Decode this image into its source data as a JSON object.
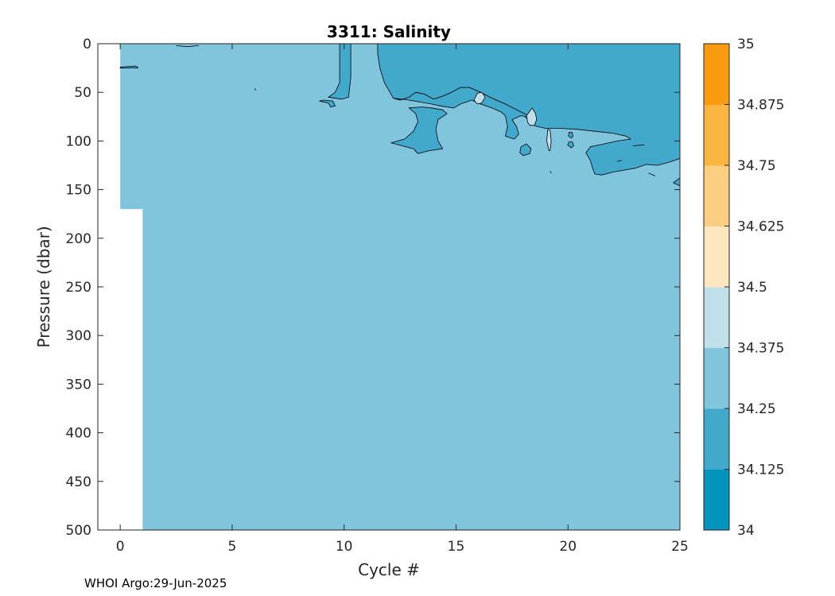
{
  "chart_data": {
    "type": "heatmap",
    "subtype": "filled-contour",
    "title": "3311:  Salinity",
    "xlabel": "Cycle #",
    "ylabel": "Pressure (dbar)",
    "xlim": [
      -1,
      25
    ],
    "ylim": [
      500,
      0
    ],
    "y_reversed": true,
    "xticks": [
      0,
      5,
      10,
      15,
      20,
      25
    ],
    "yticks": [
      0,
      50,
      100,
      150,
      200,
      250,
      300,
      350,
      400,
      450,
      500
    ],
    "grid": false,
    "data_coverage": {
      "cycles": [
        0,
        25
      ],
      "cycle0_max_pressure": 170
    },
    "background_level_range": [
      34.25,
      34.375
    ],
    "regions": [
      {
        "level_range": [
          34.125,
          34.25
        ],
        "polygon": [
          [
            11.5,
            0
          ],
          [
            25,
            0
          ],
          [
            25,
            118
          ],
          [
            24.5,
            122
          ],
          [
            24,
            125
          ],
          [
            23.5,
            124
          ],
          [
            23,
            128
          ],
          [
            22.5,
            130
          ],
          [
            22,
            132
          ],
          [
            21.5,
            135
          ],
          [
            21.2,
            134
          ],
          [
            21.1,
            128
          ],
          [
            21,
            120
          ],
          [
            20.8,
            112
          ],
          [
            21,
            106
          ],
          [
            21.6,
            103
          ],
          [
            22.2,
            100
          ],
          [
            22.8,
            98
          ],
          [
            22.6,
            95
          ],
          [
            22,
            92
          ],
          [
            21.2,
            90
          ],
          [
            20.4,
            88
          ],
          [
            19.6,
            87
          ],
          [
            19,
            87
          ],
          [
            18.6,
            85
          ],
          [
            18.3,
            82
          ],
          [
            18.1,
            75
          ],
          [
            17.7,
            70
          ],
          [
            17.2,
            62
          ],
          [
            16.6,
            56
          ],
          [
            16.1,
            50
          ],
          [
            15.6,
            45
          ],
          [
            15.2,
            45
          ],
          [
            14.8,
            50
          ],
          [
            14.4,
            54
          ],
          [
            14,
            57
          ],
          [
            13.6,
            52
          ],
          [
            13.2,
            50
          ],
          [
            12.9,
            55
          ],
          [
            12.5,
            58
          ],
          [
            12.2,
            56
          ],
          [
            12,
            48
          ],
          [
            11.8,
            40
          ],
          [
            11.6,
            25
          ],
          [
            11.5,
            10
          ]
        ]
      },
      {
        "level_range": [
          34.125,
          34.25
        ],
        "polygon": [
          [
            12.2,
            56
          ],
          [
            12.9,
            58
          ],
          [
            13.4,
            60
          ],
          [
            13.9,
            62
          ],
          [
            14.3,
            64
          ],
          [
            14.9,
            66
          ],
          [
            15.2,
            62
          ],
          [
            15.7,
            58
          ],
          [
            16.1,
            62
          ],
          [
            16.6,
            66
          ],
          [
            17,
            70
          ],
          [
            17.2,
            74
          ],
          [
            17.3,
            85
          ],
          [
            17.2,
            95
          ],
          [
            17.6,
            98
          ],
          [
            17.8,
            93
          ],
          [
            17.7,
            85
          ],
          [
            17.5,
            78
          ],
          [
            17.9,
            74
          ],
          [
            18.4,
            76
          ],
          [
            17.2,
            62
          ],
          [
            16.6,
            56
          ],
          [
            16.1,
            50
          ],
          [
            15.6,
            45
          ],
          [
            15.2,
            45
          ],
          [
            14.8,
            50
          ],
          [
            14.4,
            54
          ],
          [
            14,
            57
          ],
          [
            13.6,
            52
          ],
          [
            13.2,
            50
          ],
          [
            12.9,
            55
          ],
          [
            12.5,
            58
          ]
        ]
      },
      {
        "level_range": [
          34.125,
          34.25
        ],
        "polygon": [
          [
            13.5,
            65
          ],
          [
            12.9,
            66
          ],
          [
            13.2,
            72
          ],
          [
            13.3,
            80
          ],
          [
            13.1,
            90
          ],
          [
            12.7,
            98
          ],
          [
            12.1,
            102
          ],
          [
            12.6,
            105
          ],
          [
            13.1,
            108
          ],
          [
            13.3,
            113
          ],
          [
            13.8,
            110
          ],
          [
            14.4,
            108
          ],
          [
            14.2,
            100
          ],
          [
            14.1,
            88
          ],
          [
            14.2,
            78
          ],
          [
            14.6,
            72
          ],
          [
            14.4,
            68
          ],
          [
            13.9,
            66
          ]
        ]
      },
      {
        "level_range": [
          34.125,
          34.25
        ],
        "polygon": [
          [
            9.8,
            0
          ],
          [
            10.3,
            0
          ],
          [
            10.3,
            35
          ],
          [
            10.2,
            55
          ],
          [
            9.9,
            57
          ],
          [
            9.3,
            55
          ],
          [
            9.6,
            50
          ],
          [
            9.8,
            40
          ],
          [
            9.8,
            20
          ]
        ]
      },
      {
        "level_range": [
          34.125,
          34.25
        ],
        "polygon": [
          [
            18,
            115
          ],
          [
            17.85,
            112
          ],
          [
            17.9,
            106
          ],
          [
            18.15,
            103
          ],
          [
            18.35,
            108
          ],
          [
            18.3,
            113
          ]
        ]
      },
      {
        "level_range": [
          34.125,
          34.25
        ],
        "polygon": [
          [
            20.15,
            107
          ],
          [
            19.98,
            104
          ],
          [
            20.05,
            101
          ],
          [
            20.2,
            101
          ],
          [
            20.25,
            105
          ]
        ]
      },
      {
        "level_range": [
          34.125,
          34.25
        ],
        "polygon": [
          [
            20.15,
            97
          ],
          [
            20.02,
            95
          ],
          [
            20.05,
            91
          ],
          [
            20.18,
            91
          ],
          [
            20.22,
            95
          ]
        ]
      },
      {
        "level_range": [
          34.125,
          34.25
        ],
        "polygon": [
          [
            9.1,
            58
          ],
          [
            9.5,
            59
          ],
          [
            9.6,
            64
          ],
          [
            9.4,
            65
          ],
          [
            9.3,
            61
          ],
          [
            8.9,
            59
          ]
        ]
      },
      {
        "level_range": [
          34.125,
          34.25
        ],
        "polygon": [
          [
            0.0,
            24
          ],
          [
            0.7,
            23
          ],
          [
            0.8,
            25
          ],
          [
            0.0,
            25
          ]
        ]
      },
      {
        "level_range": [
          34.125,
          34.25
        ],
        "polygon": [
          [
            25,
            138
          ],
          [
            24.7,
            143
          ],
          [
            25,
            146
          ]
        ]
      },
      {
        "level_range": [
          34.375,
          34.5
        ],
        "polygon": [
          [
            15.8,
            58
          ],
          [
            15.95,
            51
          ],
          [
            16.15,
            50
          ],
          [
            16.3,
            55
          ],
          [
            16.15,
            61
          ],
          [
            15.95,
            62
          ]
        ]
      },
      {
        "level_range": [
          34.375,
          34.5
        ],
        "polygon": [
          [
            18.2,
            81
          ],
          [
            18.15,
            74
          ],
          [
            18.4,
            66
          ],
          [
            18.55,
            72
          ],
          [
            18.6,
            78
          ],
          [
            18.5,
            84
          ],
          [
            18.3,
            84
          ]
        ]
      },
      {
        "level_range": [
          34.375,
          34.5
        ],
        "polygon": [
          [
            19.15,
            110
          ],
          [
            19.05,
            100
          ],
          [
            19.1,
            88
          ],
          [
            19.2,
            89
          ],
          [
            19.25,
            100
          ],
          [
            19.2,
            110
          ]
        ]
      }
    ],
    "open_contours": [
      [
        [
          2.5,
          2
        ],
        [
          3,
          3
        ],
        [
          3.5,
          2
        ]
      ],
      [
        [
          6.0,
          46
        ],
        [
          6.05,
          48
        ]
      ],
      [
        [
          22.9,
          105
        ],
        [
          23.4,
          104
        ]
      ],
      [
        [
          22.2,
          121
        ],
        [
          22.4,
          120
        ]
      ],
      [
        [
          23.6,
          133
        ],
        [
          23.9,
          136
        ]
      ],
      [
        [
          19.2,
          131
        ],
        [
          19.25,
          133
        ]
      ]
    ],
    "colorbar": {
      "levels": [
        34,
        34.125,
        34.25,
        34.375,
        34.5,
        34.625,
        34.75,
        34.875,
        35
      ],
      "tick_labels": [
        "34",
        "34.125",
        "34.25",
        "34.375",
        "34.5",
        "34.625",
        "34.75",
        "34.875",
        "35"
      ],
      "colors": [
        "#0492be",
        "#42a9cc",
        "#80c4de",
        "#bfe0eb",
        "#fde7c0",
        "#fbcd80",
        "#fab540",
        "#f99b10"
      ]
    }
  },
  "footer": {
    "text": "WHOI Argo:29-Jun-2025"
  }
}
